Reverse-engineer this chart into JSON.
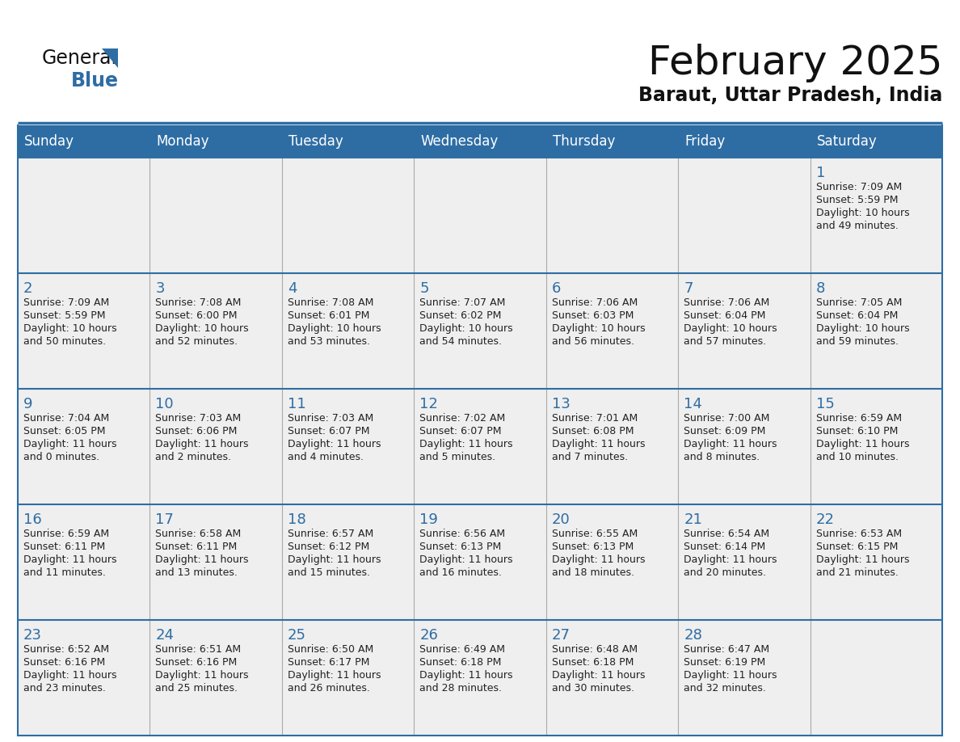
{
  "title": "February 2025",
  "subtitle": "Baraut, Uttar Pradesh, India",
  "days_of_week": [
    "Sunday",
    "Monday",
    "Tuesday",
    "Wednesday",
    "Thursday",
    "Friday",
    "Saturday"
  ],
  "header_bg": "#2E6DA4",
  "header_text": "#FFFFFF",
  "cell_bg": "#EFEFEF",
  "day_number_color": "#2E6DA4",
  "info_text_color": "#222222",
  "border_color": "#2E6DA4",
  "sep_color": "#AAAAAA",
  "calendar_data": [
    [
      null,
      null,
      null,
      null,
      null,
      null,
      {
        "day": 1,
        "sunrise": "7:09 AM",
        "sunset": "5:59 PM",
        "daylight": "10 hours and 49 minutes."
      }
    ],
    [
      {
        "day": 2,
        "sunrise": "7:09 AM",
        "sunset": "5:59 PM",
        "daylight": "10 hours and 50 minutes."
      },
      {
        "day": 3,
        "sunrise": "7:08 AM",
        "sunset": "6:00 PM",
        "daylight": "10 hours and 52 minutes."
      },
      {
        "day": 4,
        "sunrise": "7:08 AM",
        "sunset": "6:01 PM",
        "daylight": "10 hours and 53 minutes."
      },
      {
        "day": 5,
        "sunrise": "7:07 AM",
        "sunset": "6:02 PM",
        "daylight": "10 hours and 54 minutes."
      },
      {
        "day": 6,
        "sunrise": "7:06 AM",
        "sunset": "6:03 PM",
        "daylight": "10 hours and 56 minutes."
      },
      {
        "day": 7,
        "sunrise": "7:06 AM",
        "sunset": "6:04 PM",
        "daylight": "10 hours and 57 minutes."
      },
      {
        "day": 8,
        "sunrise": "7:05 AM",
        "sunset": "6:04 PM",
        "daylight": "10 hours and 59 minutes."
      }
    ],
    [
      {
        "day": 9,
        "sunrise": "7:04 AM",
        "sunset": "6:05 PM",
        "daylight": "11 hours and 0 minutes."
      },
      {
        "day": 10,
        "sunrise": "7:03 AM",
        "sunset": "6:06 PM",
        "daylight": "11 hours and 2 minutes."
      },
      {
        "day": 11,
        "sunrise": "7:03 AM",
        "sunset": "6:07 PM",
        "daylight": "11 hours and 4 minutes."
      },
      {
        "day": 12,
        "sunrise": "7:02 AM",
        "sunset": "6:07 PM",
        "daylight": "11 hours and 5 minutes."
      },
      {
        "day": 13,
        "sunrise": "7:01 AM",
        "sunset": "6:08 PM",
        "daylight": "11 hours and 7 minutes."
      },
      {
        "day": 14,
        "sunrise": "7:00 AM",
        "sunset": "6:09 PM",
        "daylight": "11 hours and 8 minutes."
      },
      {
        "day": 15,
        "sunrise": "6:59 AM",
        "sunset": "6:10 PM",
        "daylight": "11 hours and 10 minutes."
      }
    ],
    [
      {
        "day": 16,
        "sunrise": "6:59 AM",
        "sunset": "6:11 PM",
        "daylight": "11 hours and 11 minutes."
      },
      {
        "day": 17,
        "sunrise": "6:58 AM",
        "sunset": "6:11 PM",
        "daylight": "11 hours and 13 minutes."
      },
      {
        "day": 18,
        "sunrise": "6:57 AM",
        "sunset": "6:12 PM",
        "daylight": "11 hours and 15 minutes."
      },
      {
        "day": 19,
        "sunrise": "6:56 AM",
        "sunset": "6:13 PM",
        "daylight": "11 hours and 16 minutes."
      },
      {
        "day": 20,
        "sunrise": "6:55 AM",
        "sunset": "6:13 PM",
        "daylight": "11 hours and 18 minutes."
      },
      {
        "day": 21,
        "sunrise": "6:54 AM",
        "sunset": "6:14 PM",
        "daylight": "11 hours and 20 minutes."
      },
      {
        "day": 22,
        "sunrise": "6:53 AM",
        "sunset": "6:15 PM",
        "daylight": "11 hours and 21 minutes."
      }
    ],
    [
      {
        "day": 23,
        "sunrise": "6:52 AM",
        "sunset": "6:16 PM",
        "daylight": "11 hours and 23 minutes."
      },
      {
        "day": 24,
        "sunrise": "6:51 AM",
        "sunset": "6:16 PM",
        "daylight": "11 hours and 25 minutes."
      },
      {
        "day": 25,
        "sunrise": "6:50 AM",
        "sunset": "6:17 PM",
        "daylight": "11 hours and 26 minutes."
      },
      {
        "day": 26,
        "sunrise": "6:49 AM",
        "sunset": "6:18 PM",
        "daylight": "11 hours and 28 minutes."
      },
      {
        "day": 27,
        "sunrise": "6:48 AM",
        "sunset": "6:18 PM",
        "daylight": "11 hours and 30 minutes."
      },
      {
        "day": 28,
        "sunrise": "6:47 AM",
        "sunset": "6:19 PM",
        "daylight": "11 hours and 32 minutes."
      },
      null
    ]
  ]
}
